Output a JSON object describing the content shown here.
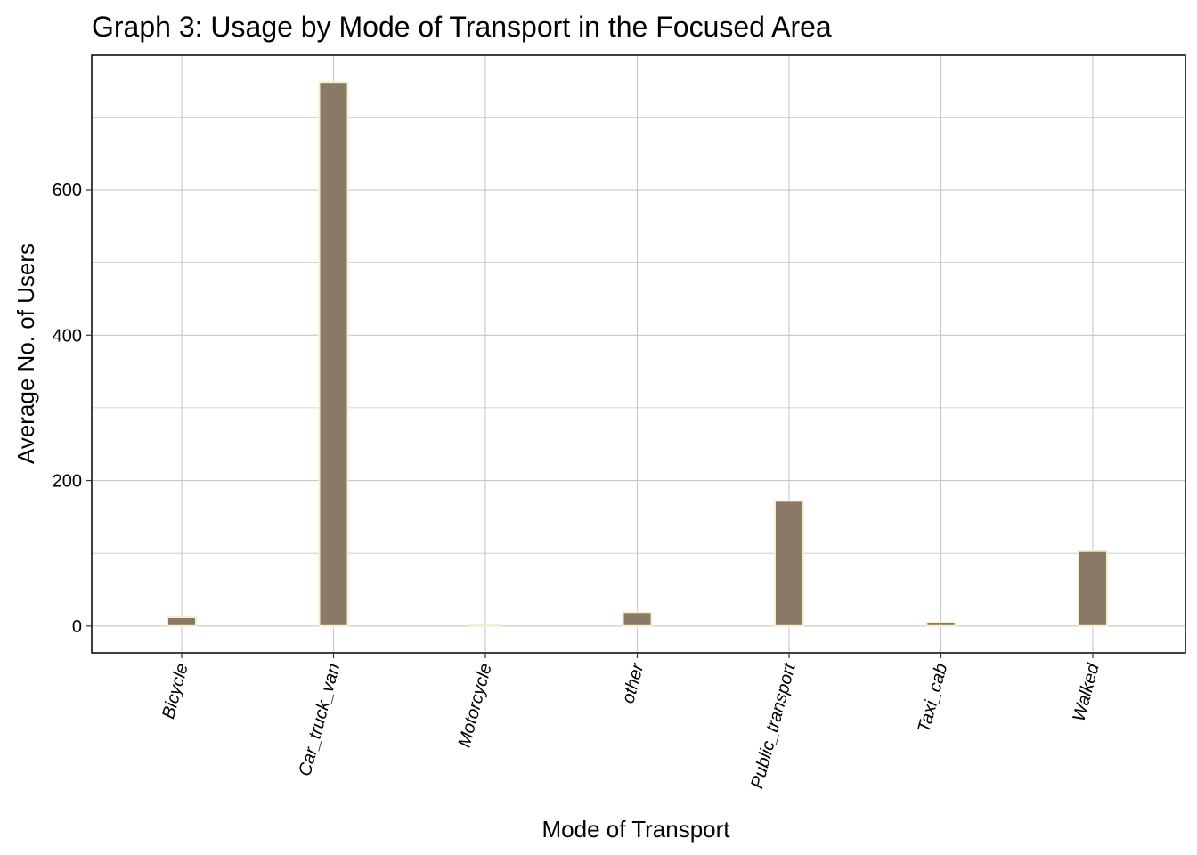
{
  "chart_data": {
    "type": "bar",
    "title": "Graph 3: Usage by Mode of Transport in the Focused Area",
    "xlabel": "Mode of Transport",
    "ylabel": "Average No. of Users",
    "categories": [
      "Bicycle",
      "Car_truck_van",
      "Motorcycle",
      "other",
      "Public_transport",
      "Taxi_cab",
      "Walked"
    ],
    "values": [
      12,
      748,
      1,
      19,
      172,
      5,
      103
    ],
    "yticks": [
      0,
      200,
      400,
      600
    ],
    "ylim": [
      -37,
      785
    ],
    "grid": true,
    "legend": "none",
    "colors": {
      "bar_fill": "#8b7967",
      "bar_stroke": "#f5eecf",
      "grid": "#c8c8c8",
      "panel_border": "#000000"
    }
  }
}
